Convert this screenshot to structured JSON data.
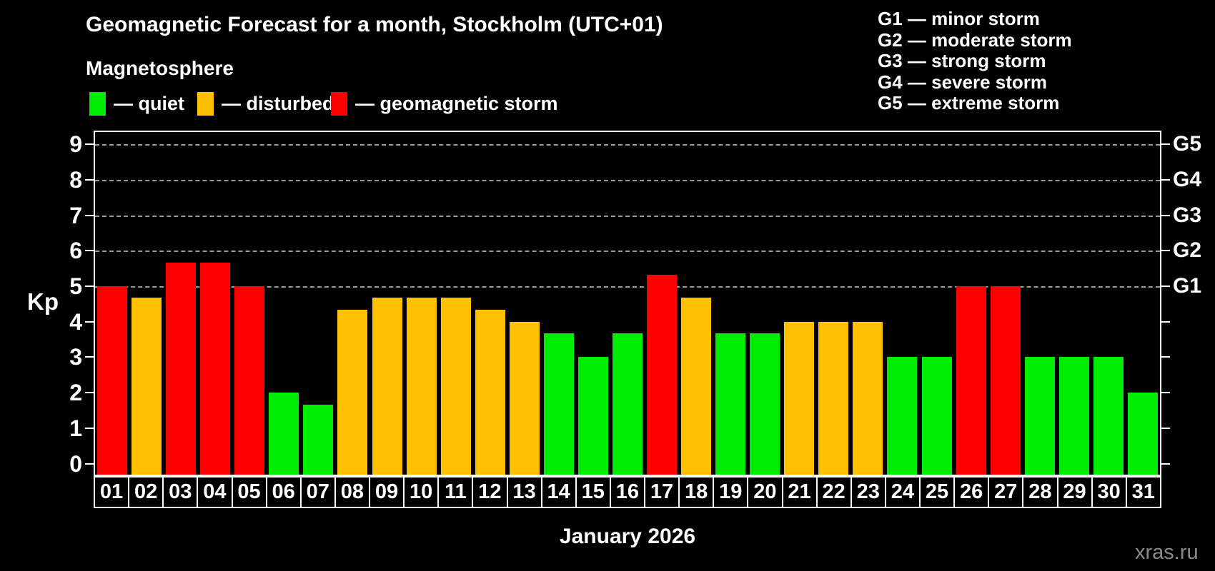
{
  "header": {
    "title": "Geomagnetic Forecast for a month, Stockholm (UTC+01)",
    "subtitle": "Magnetosphere",
    "watermark": "xras.ru"
  },
  "status_legend": [
    {
      "name": "quiet",
      "label": "— quiet",
      "color": "#00ec00"
    },
    {
      "name": "disturbed",
      "label": "— disturbed",
      "color": "#ffc000"
    },
    {
      "name": "storm",
      "label": "— geomagnetic storm",
      "color": "#ff0000"
    }
  ],
  "g_scale_legend": [
    "G1 — minor storm",
    "G2 — moderate storm",
    "G3 — strong storm",
    "G4 — severe storm",
    "G5 — extreme storm"
  ],
  "chart_data": {
    "type": "bar",
    "title": "Geomagnetic Forecast for a month, Stockholm (UTC+01)",
    "xlabel": "January 2026",
    "ylabel": "Kp",
    "ylim": [
      0,
      9
    ],
    "yticks": [
      0,
      1,
      2,
      3,
      4,
      5,
      6,
      7,
      8,
      9
    ],
    "gridlines_at": [
      5,
      6,
      7,
      8,
      9
    ],
    "grid": "dashed, Kp 5-9 only",
    "legend_position": "top",
    "right_axis_labels": [
      {
        "kp": 5,
        "label": "G1"
      },
      {
        "kp": 6,
        "label": "G2"
      },
      {
        "kp": 7,
        "label": "G3"
      },
      {
        "kp": 8,
        "label": "G4"
      },
      {
        "kp": 9,
        "label": "G5"
      }
    ],
    "categories": [
      "01",
      "02",
      "03",
      "04",
      "05",
      "06",
      "07",
      "08",
      "09",
      "10",
      "11",
      "12",
      "13",
      "14",
      "15",
      "16",
      "17",
      "18",
      "19",
      "20",
      "21",
      "22",
      "23",
      "24",
      "25",
      "26",
      "27",
      "28",
      "29",
      "30",
      "31"
    ],
    "values": [
      5.0,
      4.67,
      5.67,
      5.67,
      5.0,
      2.0,
      1.67,
      4.33,
      4.67,
      4.67,
      4.67,
      4.33,
      4.0,
      3.67,
      3.0,
      3.67,
      5.33,
      4.67,
      3.67,
      3.67,
      4.0,
      4.0,
      4.0,
      3.0,
      3.0,
      5.0,
      5.0,
      3.0,
      3.0,
      3.0,
      2.0
    ],
    "statuses": [
      "storm",
      "disturbed",
      "storm",
      "storm",
      "storm",
      "quiet",
      "quiet",
      "disturbed",
      "disturbed",
      "disturbed",
      "disturbed",
      "disturbed",
      "disturbed",
      "quiet",
      "quiet",
      "quiet",
      "storm",
      "disturbed",
      "quiet",
      "quiet",
      "disturbed",
      "disturbed",
      "disturbed",
      "quiet",
      "quiet",
      "storm",
      "storm",
      "quiet",
      "quiet",
      "quiet",
      "quiet"
    ]
  }
}
